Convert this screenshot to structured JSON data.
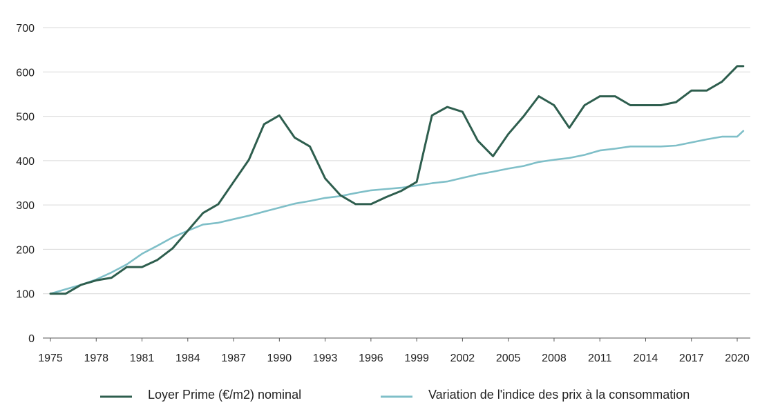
{
  "chart_data": {
    "type": "line",
    "title": "",
    "xlabel": "",
    "ylabel": "",
    "ylim": [
      0,
      700
    ],
    "xlim": [
      1975,
      2020
    ],
    "y_ticks": [
      0,
      100,
      200,
      300,
      400,
      500,
      600,
      700
    ],
    "x_ticks": [
      "1975",
      "1978",
      "1981",
      "1984",
      "1987",
      "1990",
      "1993",
      "1996",
      "1999",
      "2002",
      "2005",
      "2008",
      "2011",
      "2014",
      "2017",
      "2020"
    ],
    "grid": "horizontal",
    "legend_position": "bottom",
    "x": [
      1975,
      1976,
      1977,
      1978,
      1979,
      1980,
      1981,
      1982,
      1983,
      1984,
      1985,
      1986,
      1987,
      1988,
      1989,
      1990,
      1991,
      1992,
      1993,
      1994,
      1995,
      1996,
      1997,
      1998,
      1999,
      2000,
      2001,
      2002,
      2003,
      2004,
      2005,
      2006,
      2007,
      2008,
      2009,
      2010,
      2011,
      2012,
      2013,
      2014,
      2015,
      2016,
      2017,
      2018,
      2019,
      2020,
      2020.4
    ],
    "series": [
      {
        "name": "Loyer Prime (€/m2) nominal",
        "color": "#2e5e4e",
        "values": [
          100,
          100,
          120,
          130,
          136,
          160,
          160,
          176,
          202,
          242,
          282,
          302,
          352,
          402,
          482,
          502,
          452,
          432,
          360,
          322,
          302,
          302,
          318,
          332,
          352,
          502,
          521,
          510,
          445,
          410,
          460,
          500,
          545,
          525,
          474,
          525,
          545,
          545,
          525,
          525,
          525,
          532,
          558,
          558,
          578,
          613,
          613
        ]
      },
      {
        "name": "Variation de l'indice des prix à la consommation",
        "color": "#7fbfc8",
        "values": [
          100,
          110,
          120,
          132,
          148,
          166,
          190,
          208,
          227,
          242,
          256,
          260,
          268,
          276,
          285,
          294,
          303,
          309,
          316,
          320,
          327,
          333,
          336,
          339,
          344,
          349,
          353,
          361,
          369,
          375,
          382,
          388,
          397,
          402,
          406,
          413,
          423,
          427,
          432,
          432,
          432,
          434,
          441,
          448,
          454,
          454,
          467
        ]
      }
    ]
  }
}
